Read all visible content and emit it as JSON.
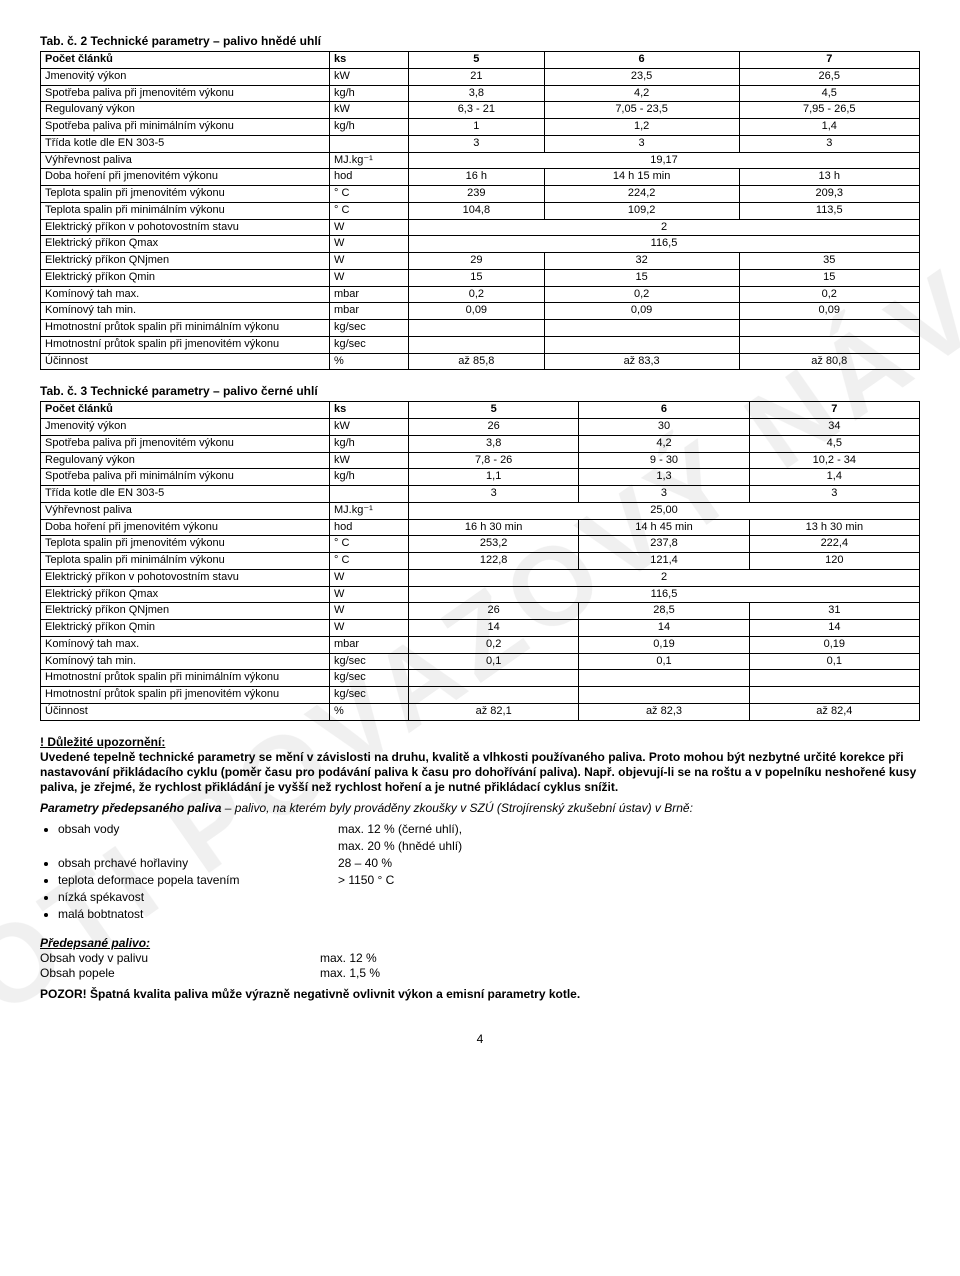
{
  "watermark": "PROTI POVAZOVÝ NÁVOD",
  "table2": {
    "title": "Tab. č. 2    Technické parametry – palivo hnědé uhlí",
    "columns": [
      "",
      "",
      "5",
      "6",
      "7"
    ],
    "rows": [
      [
        "Počet článků",
        "ks",
        "5",
        "6",
        "7"
      ],
      [
        "Jmenovitý výkon",
        "kW",
        "21",
        "23,5",
        "26,5"
      ],
      [
        "Spotřeba paliva při jmenovitém výkonu",
        "kg/h",
        "3,8",
        "4,2",
        "4,5"
      ],
      [
        "Regulovaný výkon",
        "kW",
        "6,3 - 21",
        "7,05 - 23,5",
        "7,95 - 26,5"
      ],
      [
        "Spotřeba paliva při minimálním výkonu",
        "kg/h",
        "1",
        "1,2",
        "1,4"
      ],
      [
        "Třída kotle dle EN 303-5",
        "",
        "3",
        "3",
        "3"
      ],
      [
        "Výhřevnost paliva",
        "MJ.kg⁻¹",
        "",
        "19,17",
        ""
      ],
      [
        "Doba hoření při jmenovitém výkonu",
        "hod",
        "16 h",
        "14 h 15 min",
        "13 h"
      ],
      [
        "Teplota spalin při jmenovitém výkonu",
        "° C",
        "239",
        "224,2",
        "209,3"
      ],
      [
        "Teplota spalin při minimálním výkonu",
        "° C",
        "104,8",
        "109,2",
        "113,5"
      ],
      [
        "Elektrický příkon v pohotovostním stavu",
        "W",
        "",
        "2",
        ""
      ],
      [
        "Elektrický příkon Qmax",
        "W",
        "",
        "116,5",
        ""
      ],
      [
        "Elektrický příkon QNjmen",
        "W",
        "29",
        "32",
        "35"
      ],
      [
        "Elektrický příkon Qmin",
        "W",
        "15",
        "15",
        "15"
      ],
      [
        "Komínový tah max.",
        "mbar",
        "0,2",
        "0,2",
        "0,2"
      ],
      [
        "Komínový tah min.",
        "mbar",
        "0,09",
        "0,09",
        "0,09"
      ],
      [
        "Hmotnostní průtok spalin při minimálním výkonu",
        "kg/sec",
        "",
        "",
        ""
      ],
      [
        "Hmotnostní průtok spalin při jmenovitém výkonu",
        "kg/sec",
        "",
        "",
        ""
      ],
      [
        "Účinnost",
        "%",
        "až 85,8",
        "až 83,3",
        "až 80,8"
      ]
    ],
    "merged_center_rows": [
      6,
      10,
      11
    ]
  },
  "table3": {
    "title": "Tab. č. 3    Technické parametry – palivo černé uhlí",
    "rows": [
      [
        "Počet článků",
        "ks",
        "5",
        "6",
        "7"
      ],
      [
        "Jmenovitý výkon",
        "kW",
        "26",
        "30",
        "34"
      ],
      [
        "Spotřeba paliva při jmenovitém výkonu",
        "kg/h",
        "3,8",
        "4,2",
        "4,5"
      ],
      [
        "Regulovaný výkon",
        "kW",
        "7,8 - 26",
        "9 - 30",
        "10,2 - 34"
      ],
      [
        "Spotřeba paliva při minimálním výkonu",
        "kg/h",
        "1,1",
        "1,3",
        "1,4"
      ],
      [
        "Třída kotle dle EN 303-5",
        "",
        "3",
        "3",
        "3"
      ],
      [
        "Výhřevnost paliva",
        "MJ.kg⁻¹",
        "",
        "25,00",
        ""
      ],
      [
        "Doba hoření při jmenovitém výkonu",
        "hod",
        "16 h 30 min",
        "14 h 45 min",
        "13 h 30 min"
      ],
      [
        "Teplota spalin při jmenovitém výkonu",
        "° C",
        "253,2",
        "237,8",
        "222,4"
      ],
      [
        "Teplota spalin při minimálním výkonu",
        "° C",
        "122,8",
        "121,4",
        "120"
      ],
      [
        "Elektrický příkon v pohotovostním stavu",
        "W",
        "",
        "2",
        ""
      ],
      [
        "Elektrický příkon Qmax",
        "W",
        "",
        "116,5",
        ""
      ],
      [
        "Elektrický příkon QNjmen",
        "W",
        "26",
        "28,5",
        "31"
      ],
      [
        "Elektrický příkon Qmin",
        "W",
        "14",
        "14",
        "14"
      ],
      [
        "Komínový tah max.",
        "mbar",
        "0,2",
        "0,19",
        "0,19"
      ],
      [
        "Komínový tah min.",
        "kg/sec",
        "0,1",
        "0,1",
        "0,1"
      ],
      [
        "Hmotnostní průtok spalin při minimálním výkonu",
        "kg/sec",
        "",
        "",
        ""
      ],
      [
        "Hmotnostní průtok spalin při jmenovitém výkonu",
        "kg/sec",
        "",
        "",
        ""
      ],
      [
        "Účinnost",
        "%",
        "až 82,1",
        "až 82,3",
        "až 82,4"
      ]
    ],
    "merged_center_rows": [
      6,
      10,
      11
    ]
  },
  "warning": {
    "head": "! Důležité upozornění:",
    "body": "Uvedené tepelně technické parametry se mění v závislosti na druhu, kvalitě a vlhkosti používaného paliva. Proto mohou být nezbytné určité korekce při nastavování přikládacího cyklu (poměr času pro podávání paliva k času pro dohořívání paliva). Např. objevují-li se na roštu a v popelníku neshořené kusy paliva, je zřejmé, že rychlost přikládání je vyšší než rychlost hoření a je nutné přikládací cyklus snížit."
  },
  "params_head": "Parametry předepsaného paliva",
  "params_tail": " – palivo, na kterém byly prováděny zkoušky v SZÚ (Strojírenský zkušební ústav) v Brně:",
  "fuel_props": [
    {
      "k": "obsah vody",
      "v": "max. 12 % (černé uhlí),"
    },
    {
      "k": "",
      "v": "max. 20 % (hnědé uhlí)"
    },
    {
      "k": "obsah prchavé hořlaviny",
      "v": "28 – 40 %"
    },
    {
      "k": "teplota deformace popela tavením",
      "v": "> 1150 ° C"
    },
    {
      "k": "nízká spékavost",
      "v": ""
    },
    {
      "k": "malá bobtnatost",
      "v": ""
    }
  ],
  "predepsane": {
    "head": "Předepsané palivo:",
    "rows": [
      {
        "k": "Obsah vody v palivu",
        "v": "max. 12 %"
      },
      {
        "k": "Obsah popele",
        "v": "max. 1,5 %"
      }
    ]
  },
  "pozor": "POZOR! Špatná kvalita paliva může výrazně negativně ovlivnit výkon a emisní parametry kotle.",
  "page_num": "4"
}
